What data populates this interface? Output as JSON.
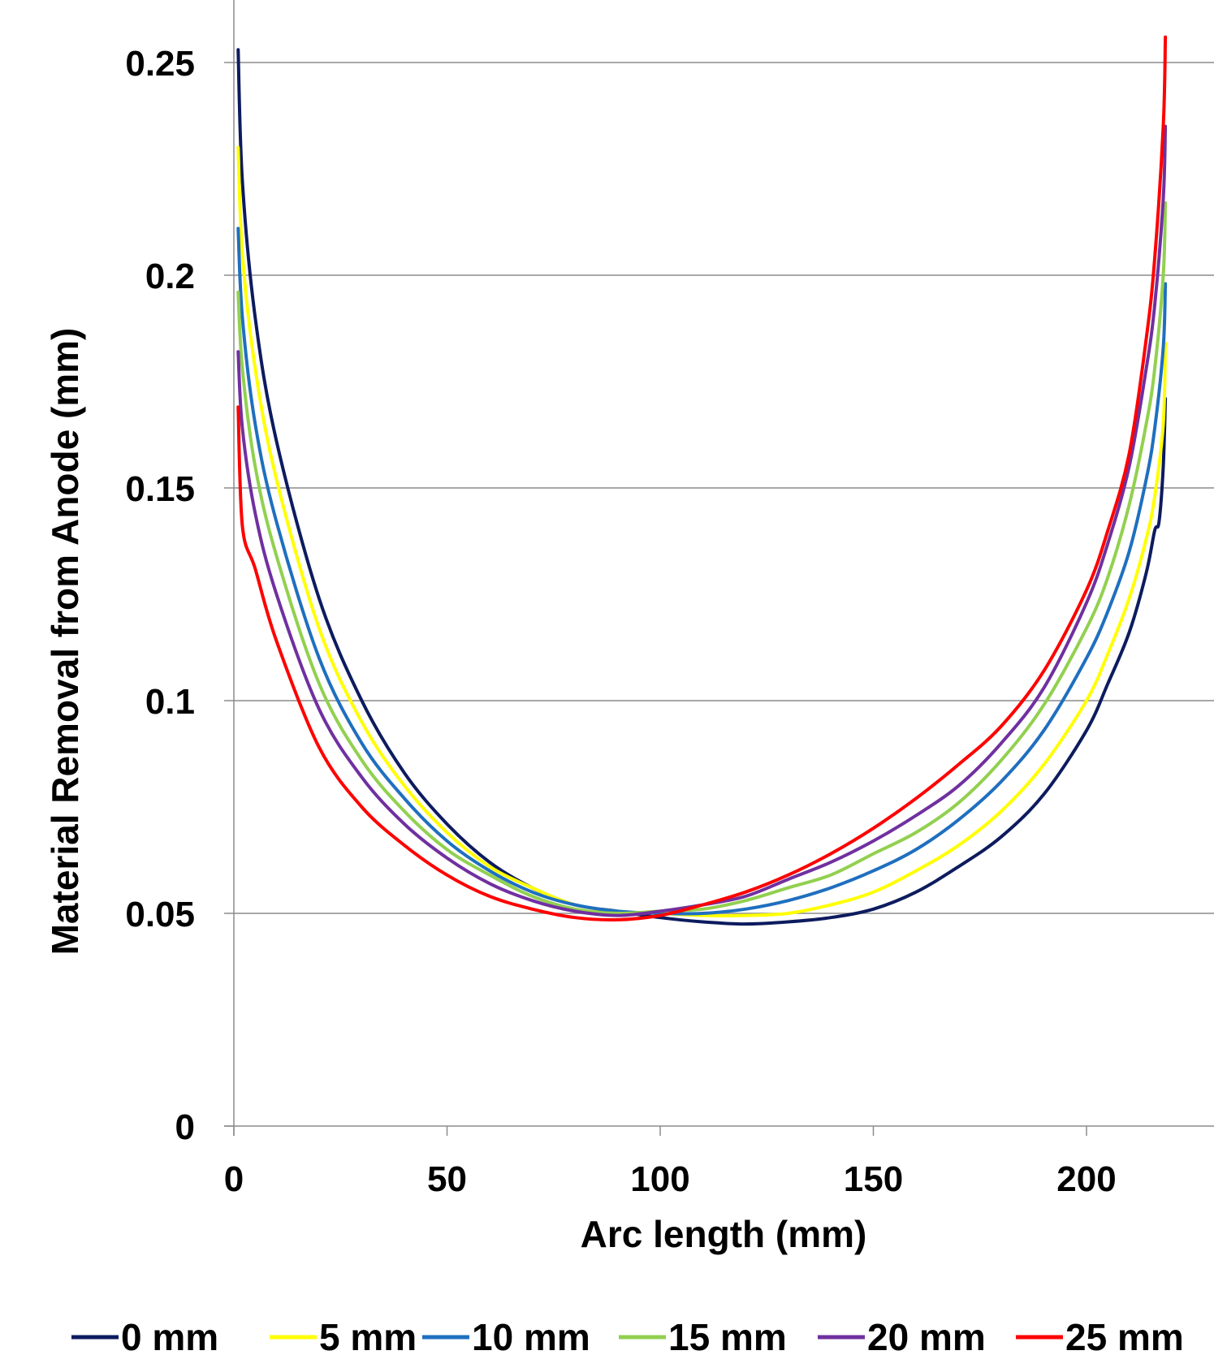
{
  "chart_data": {
    "type": "line",
    "xlabel": "Arc length (mm)",
    "ylabel": "Material Removal from Anode (mm)",
    "xlim": [
      0,
      230
    ],
    "ylim": [
      0,
      0.25
    ],
    "x_ticks": [
      "0",
      "50",
      "100",
      "150",
      "200"
    ],
    "y_ticks": [
      "0",
      "0.05",
      "0.1",
      "0.15",
      "0.2",
      "0.25"
    ],
    "grid": "horizontal",
    "legend_position": "bottom",
    "series": [
      {
        "name": "0 mm",
        "color": "#0d1b5e",
        "x": [
          1,
          2,
          5,
          10,
          20,
          30,
          40,
          50,
          60,
          70,
          80,
          90,
          100,
          110,
          120,
          130,
          140,
          150,
          160,
          170,
          180,
          190,
          200,
          205,
          210,
          214,
          216,
          217,
          218,
          218.5
        ],
        "y": [
          0.253,
          0.222,
          0.19,
          0.161,
          0.124,
          0.1,
          0.083,
          0.071,
          0.062,
          0.056,
          0.052,
          0.0505,
          0.049,
          0.048,
          0.0475,
          0.048,
          0.049,
          0.051,
          0.055,
          0.061,
          0.068,
          0.078,
          0.093,
          0.104,
          0.116,
          0.13,
          0.14,
          0.142,
          0.155,
          0.171
        ]
      },
      {
        "name": "5 mm",
        "color": "#ffff00",
        "x": [
          1,
          2,
          5,
          10,
          20,
          30,
          40,
          50,
          60,
          70,
          80,
          90,
          100,
          110,
          120,
          130,
          140,
          150,
          160,
          170,
          180,
          190,
          200,
          205,
          210,
          214,
          216,
          218,
          218.5
        ],
        "y": [
          0.23,
          0.205,
          0.178,
          0.152,
          0.117,
          0.095,
          0.08,
          0.069,
          0.061,
          0.056,
          0.052,
          0.0505,
          0.05,
          0.0495,
          0.0495,
          0.05,
          0.052,
          0.055,
          0.06,
          0.066,
          0.074,
          0.085,
          0.1,
          0.111,
          0.124,
          0.138,
          0.148,
          0.165,
          0.184
        ]
      },
      {
        "name": "10 mm",
        "color": "#1f6fbf",
        "x": [
          1,
          2,
          5,
          10,
          20,
          30,
          40,
          50,
          60,
          70,
          80,
          90,
          100,
          110,
          120,
          130,
          140,
          150,
          160,
          170,
          180,
          190,
          200,
          205,
          210,
          214,
          216,
          218,
          218.5
        ],
        "y": [
          0.211,
          0.19,
          0.165,
          0.142,
          0.11,
          0.09,
          0.077,
          0.067,
          0.06,
          0.055,
          0.052,
          0.0505,
          0.05,
          0.05,
          0.051,
          0.053,
          0.056,
          0.06,
          0.065,
          0.072,
          0.081,
          0.093,
          0.11,
          0.121,
          0.135,
          0.152,
          0.164,
          0.183,
          0.198
        ]
      },
      {
        "name": "15 mm",
        "color": "#92d050",
        "x": [
          1,
          2,
          5,
          10,
          20,
          30,
          40,
          50,
          60,
          70,
          80,
          90,
          100,
          110,
          120,
          130,
          140,
          150,
          160,
          170,
          180,
          190,
          200,
          205,
          210,
          214,
          216,
          218,
          218.5
        ],
        "y": [
          0.196,
          0.178,
          0.155,
          0.134,
          0.104,
          0.086,
          0.074,
          0.065,
          0.059,
          0.054,
          0.051,
          0.05,
          0.0505,
          0.051,
          0.053,
          0.056,
          0.059,
          0.064,
          0.069,
          0.076,
          0.086,
          0.099,
          0.117,
          0.129,
          0.146,
          0.165,
          0.178,
          0.2,
          0.217
        ]
      },
      {
        "name": "20 mm",
        "color": "#7030a0",
        "x": [
          1,
          2,
          5,
          10,
          20,
          30,
          40,
          50,
          60,
          70,
          80,
          90,
          100,
          110,
          120,
          130,
          140,
          150,
          160,
          170,
          180,
          190,
          200,
          205,
          210,
          214,
          216,
          218,
          218.5
        ],
        "y": [
          0.182,
          0.164,
          0.144,
          0.125,
          0.098,
          0.082,
          0.071,
          0.063,
          0.057,
          0.053,
          0.0505,
          0.0495,
          0.0505,
          0.052,
          0.054,
          0.058,
          0.062,
          0.067,
          0.073,
          0.08,
          0.09,
          0.103,
          0.123,
          0.137,
          0.155,
          0.178,
          0.193,
          0.218,
          0.235
        ]
      },
      {
        "name": "25 mm",
        "color": "#ff0000",
        "x": [
          1,
          2,
          5,
          10,
          20,
          30,
          40,
          50,
          60,
          70,
          80,
          90,
          100,
          110,
          120,
          130,
          140,
          150,
          160,
          170,
          180,
          190,
          200,
          205,
          210,
          214,
          216,
          218,
          218.5
        ],
        "y": [
          0.169,
          0.141,
          0.131,
          0.114,
          0.089,
          0.075,
          0.066,
          0.059,
          0.054,
          0.051,
          0.049,
          0.0485,
          0.0495,
          0.052,
          0.055,
          0.059,
          0.064,
          0.07,
          0.077,
          0.085,
          0.094,
          0.107,
          0.126,
          0.14,
          0.158,
          0.185,
          0.204,
          0.235,
          0.256
        ]
      }
    ]
  }
}
